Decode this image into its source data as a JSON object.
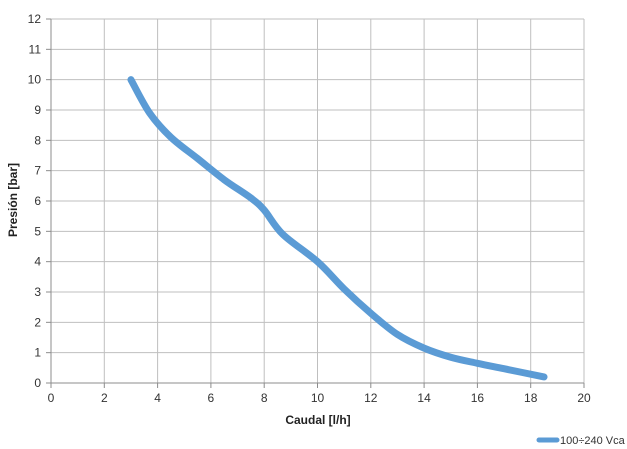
{
  "chart_data": {
    "type": "line",
    "title": "",
    "xlabel": "Caudal [l/h]",
    "ylabel": "Presión [bar]",
    "xlim": [
      0,
      20
    ],
    "ylim": [
      0,
      12
    ],
    "x_ticks": [
      0,
      2,
      4,
      6,
      8,
      10,
      12,
      14,
      16,
      18,
      20
    ],
    "y_ticks": [
      0,
      1,
      2,
      3,
      4,
      5,
      6,
      7,
      8,
      9,
      10,
      11,
      12
    ],
    "grid": true,
    "legend_position": "bottom-right",
    "series": [
      {
        "name": "100÷240 Vca",
        "color": "#5b9bd5",
        "x": [
          3.0,
          3.7,
          4.5,
          5.5,
          6.5,
          7.5,
          8.0,
          8.7,
          10.0,
          11.0,
          12.0,
          13.0,
          14.0,
          15.0,
          16.0,
          17.0,
          18.5
        ],
        "y": [
          10.0,
          8.9,
          8.1,
          7.4,
          6.7,
          6.1,
          5.7,
          4.9,
          4.0,
          3.1,
          2.3,
          1.6,
          1.15,
          0.85,
          0.65,
          0.47,
          0.2
        ]
      }
    ]
  }
}
